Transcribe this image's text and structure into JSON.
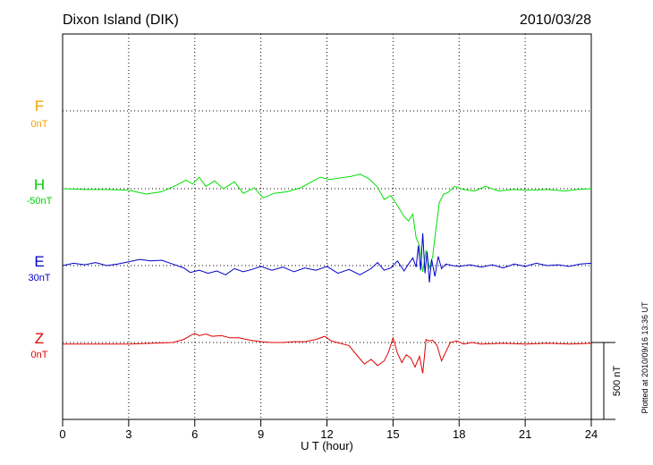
{
  "chart_data": {
    "type": "line",
    "title": "Dixon Island (DIK)",
    "date": "2010/03/28",
    "xlabel": "U T (hour)",
    "xlim": [
      0,
      24
    ],
    "x_ticks": [
      "0",
      "3",
      "6",
      "9",
      "12",
      "15",
      "18",
      "21",
      "24"
    ],
    "grid": true,
    "footnote": "Plotted at 2010/09/16 13:36 UT",
    "scale_bar": {
      "label": "500 nT",
      "value_nT": 500
    },
    "series": [
      {
        "name": "F",
        "baseline": "0nT",
        "color": "#f4a000",
        "x": [],
        "y": []
      },
      {
        "name": "H",
        "baseline": "-50nT",
        "color": "#00e000",
        "x": [
          0,
          1,
          2,
          3,
          3.8,
          4.5,
          5.2,
          5.6,
          5.9,
          6.2,
          6.5,
          6.9,
          7.3,
          7.8,
          8.2,
          8.7,
          9.1,
          9.6,
          10.2,
          10.8,
          11.3,
          11.7,
          12.1,
          12.6,
          13.1,
          13.5,
          13.9,
          14.3,
          14.6,
          14.9,
          15.2,
          15.5,
          15.7,
          15.9,
          16.05,
          16.2,
          16.35,
          16.5,
          16.65,
          16.8,
          16.95,
          17.1,
          17.3,
          17.5,
          17.8,
          18.2,
          18.7,
          19.2,
          19.8,
          20.5,
          21.2,
          22,
          22.8,
          23.4,
          24
        ],
        "y": [
          0,
          -5,
          -5,
          -10,
          -35,
          -20,
          25,
          55,
          30,
          75,
          15,
          50,
          0,
          45,
          -30,
          5,
          -60,
          -30,
          -20,
          5,
          45,
          75,
          60,
          70,
          80,
          95,
          65,
          10,
          -70,
          -45,
          -110,
          -180,
          -210,
          -165,
          -320,
          -370,
          -540,
          -400,
          -520,
          -440,
          -260,
          -90,
          -35,
          -25,
          15,
          -5,
          -15,
          15,
          -15,
          -5,
          -10,
          -5,
          -15,
          -5,
          0
        ]
      },
      {
        "name": "E",
        "baseline": "30nT",
        "color": "#0000c8",
        "x": [
          0,
          0.5,
          1,
          1.5,
          2,
          2.5,
          3,
          3.5,
          4,
          4.5,
          5,
          5.5,
          5.8,
          6.2,
          6.6,
          7,
          7.4,
          7.8,
          8.2,
          8.6,
          9,
          9.5,
          10,
          10.5,
          11,
          11.5,
          12,
          12.5,
          13,
          13.5,
          14,
          14.3,
          14.6,
          14.9,
          15.2,
          15.5,
          15.7,
          15.9,
          16.05,
          16.15,
          16.25,
          16.35,
          16.45,
          16.55,
          16.65,
          16.75,
          16.9,
          17.05,
          17.2,
          17.4,
          17.7,
          18,
          18.5,
          19,
          19.5,
          20,
          20.5,
          21,
          21.5,
          22,
          22.5,
          23,
          23.5,
          24
        ],
        "y": [
          0,
          15,
          5,
          20,
          0,
          10,
          25,
          40,
          30,
          35,
          10,
          -15,
          -45,
          -30,
          -50,
          -35,
          -60,
          -20,
          -40,
          -25,
          -5,
          -30,
          -10,
          -40,
          -15,
          -30,
          -5,
          -50,
          -25,
          -60,
          -20,
          20,
          -30,
          -15,
          30,
          -35,
          10,
          50,
          -10,
          130,
          -30,
          210,
          -50,
          90,
          -110,
          40,
          -70,
          60,
          -20,
          10,
          0,
          -5,
          5,
          -10,
          5,
          -15,
          10,
          -5,
          15,
          0,
          5,
          -5,
          10,
          15
        ]
      },
      {
        "name": "Z",
        "baseline": "0nT",
        "color": "#e00000",
        "x": [
          0,
          1,
          2,
          3,
          4,
          5,
          5.5,
          5.8,
          6.0,
          6.2,
          6.5,
          6.8,
          7.2,
          7.6,
          8.0,
          8.5,
          9,
          9.5,
          10,
          10.5,
          11,
          11.5,
          11.9,
          12.2,
          12.6,
          13,
          13.4,
          13.7,
          14,
          14.3,
          14.6,
          14.8,
          15,
          15.2,
          15.4,
          15.6,
          15.8,
          16,
          16.2,
          16.35,
          16.5,
          16.65,
          16.8,
          17,
          17.2,
          17.4,
          17.6,
          17.9,
          18.2,
          18.6,
          19,
          20,
          21,
          22,
          23,
          24
        ],
        "y": [
          -10,
          -10,
          -10,
          -10,
          -5,
          0,
          20,
          45,
          60,
          45,
          55,
          40,
          45,
          30,
          30,
          15,
          5,
          0,
          0,
          5,
          5,
          20,
          40,
          10,
          -5,
          -20,
          -90,
          -140,
          -110,
          -150,
          -120,
          -60,
          30,
          -70,
          -130,
          -80,
          -100,
          -160,
          -90,
          -200,
          20,
          10,
          15,
          -20,
          -120,
          -60,
          0,
          10,
          -10,
          0,
          -10,
          -5,
          -10,
          -5,
          -10,
          -5
        ]
      }
    ]
  }
}
